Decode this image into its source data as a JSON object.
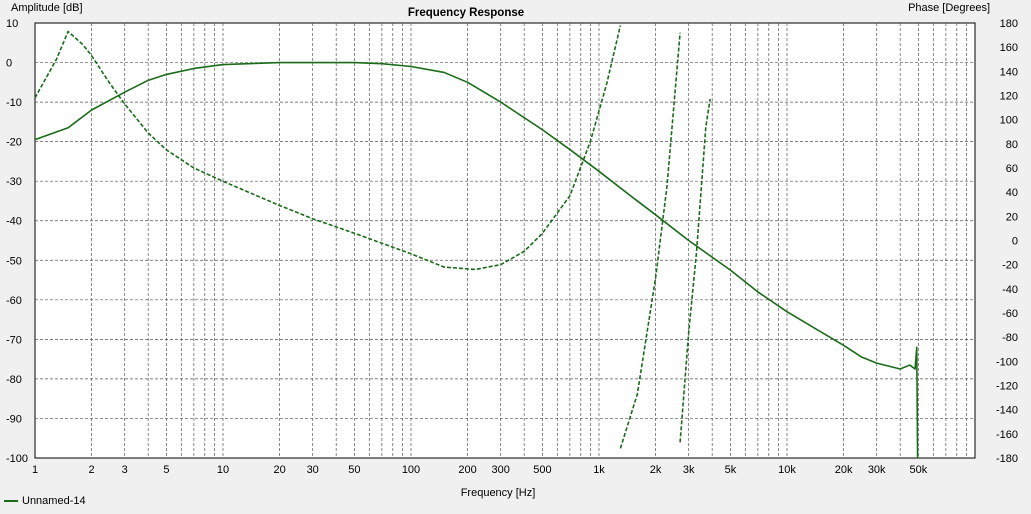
{
  "chart_data": {
    "type": "line",
    "title": "Frequency Response",
    "xlabel": "Frequency [Hz]",
    "ylabel_left": "Amplitude [dB]",
    "ylabel_right": "Phase [Degrees]",
    "x_scale": "log",
    "xlim": [
      1,
      100000
    ],
    "ylim_left": [
      -100,
      10
    ],
    "ylim_right": [
      -180,
      180
    ],
    "grid": true,
    "legend_position": "bottom-left",
    "x_ticks": [
      {
        "v": 1,
        "label": "1"
      },
      {
        "v": 2,
        "label": "2"
      },
      {
        "v": 3,
        "label": "3"
      },
      {
        "v": 5,
        "label": "5"
      },
      {
        "v": 10,
        "label": "10"
      },
      {
        "v": 20,
        "label": "20"
      },
      {
        "v": 30,
        "label": "30"
      },
      {
        "v": 50,
        "label": "50"
      },
      {
        "v": 100,
        "label": "100"
      },
      {
        "v": 200,
        "label": "200"
      },
      {
        "v": 300,
        "label": "300"
      },
      {
        "v": 500,
        "label": "500"
      },
      {
        "v": 1000,
        "label": "1k"
      },
      {
        "v": 2000,
        "label": "2k"
      },
      {
        "v": 3000,
        "label": "3k"
      },
      {
        "v": 5000,
        "label": "5k"
      },
      {
        "v": 10000,
        "label": "10k"
      },
      {
        "v": 20000,
        "label": "20k"
      },
      {
        "v": 30000,
        "label": "30k"
      },
      {
        "v": 50000,
        "label": "50k"
      }
    ],
    "y_left_ticks": [
      10,
      0,
      -10,
      -20,
      -30,
      -40,
      -50,
      -60,
      -70,
      -80,
      -90,
      -100
    ],
    "y_right_ticks": [
      180,
      160,
      140,
      120,
      100,
      80,
      60,
      40,
      20,
      0,
      -20,
      -40,
      -60,
      -80,
      -100,
      -120,
      -140,
      -160,
      -180
    ],
    "color": "#1a6b1a",
    "series": [
      {
        "name": "Unnamed-14",
        "axis": "left",
        "style": "solid",
        "points": [
          [
            1,
            -19.5
          ],
          [
            1.5,
            -16.5
          ],
          [
            2,
            -12
          ],
          [
            3,
            -7.5
          ],
          [
            4,
            -4.5
          ],
          [
            5,
            -3
          ],
          [
            7,
            -1.5
          ],
          [
            10,
            -0.5
          ],
          [
            20,
            0
          ],
          [
            50,
            0
          ],
          [
            70,
            -0.3
          ],
          [
            100,
            -1
          ],
          [
            150,
            -2.5
          ],
          [
            200,
            -5
          ],
          [
            300,
            -10
          ],
          [
            500,
            -17
          ],
          [
            700,
            -22
          ],
          [
            1000,
            -27.5
          ],
          [
            1500,
            -34
          ],
          [
            2000,
            -38.5
          ],
          [
            3000,
            -45
          ],
          [
            5000,
            -52.5
          ],
          [
            7000,
            -58
          ],
          [
            10000,
            -63
          ],
          [
            15000,
            -68
          ],
          [
            20000,
            -71.5
          ],
          [
            25000,
            -74.5
          ],
          [
            30000,
            -76
          ],
          [
            40000,
            -77.5
          ],
          [
            45000,
            -76.5
          ],
          [
            48000,
            -77.5
          ],
          [
            49000,
            -72
          ],
          [
            49500,
            -100
          ]
        ]
      },
      {
        "name": "",
        "axis": "right",
        "style": "dashed",
        "segments": [
          [
            [
              1,
              118
            ],
            [
              1.3,
              150
            ],
            [
              1.5,
              173
            ],
            [
              1.8,
              162
            ],
            [
              2,
              153
            ],
            [
              2.5,
              130
            ],
            [
              3,
              113
            ],
            [
              4,
              89
            ],
            [
              5,
              75
            ],
            [
              7,
              60
            ],
            [
              10,
              49
            ],
            [
              20,
              29
            ],
            [
              30,
              18
            ],
            [
              50,
              6
            ],
            [
              100,
              -11
            ],
            [
              150,
              -22
            ],
            [
              220,
              -24
            ],
            [
              300,
              -20
            ],
            [
              400,
              -9
            ],
            [
              500,
              6
            ],
            [
              700,
              37
            ],
            [
              900,
              82
            ],
            [
              1100,
              130
            ],
            [
              1300,
              178
            ]
          ],
          [
            [
              1300,
              -172
            ],
            [
              1600,
              -127
            ],
            [
              2000,
              -31
            ],
            [
              2300,
              45
            ],
            [
              2700,
              172
            ]
          ],
          [
            [
              2700,
              -167
            ],
            [
              3000,
              -76
            ],
            [
              3300,
              -10
            ],
            [
              3700,
              94
            ],
            [
              3900,
              117
            ]
          ]
        ]
      }
    ]
  }
}
